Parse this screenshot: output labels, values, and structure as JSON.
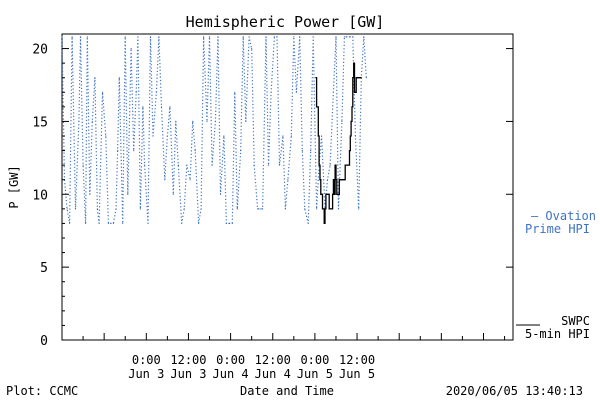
{
  "chart_data": {
    "type": "line",
    "title": "Hemispheric Power [GW]",
    "xlabel": "Date and Time",
    "ylabel": "P [GW]",
    "ylim": [
      0,
      21
    ],
    "xlim": [
      0,
      5.35
    ],
    "yticks": [
      0,
      5,
      10,
      15,
      20
    ],
    "xticks": [
      {
        "x": 1.0,
        "top": "0:00",
        "bottom": "Jun 3"
      },
      {
        "x": 1.5,
        "top": "12:00",
        "bottom": "Jun 3"
      },
      {
        "x": 2.0,
        "top": "0:00",
        "bottom": "Jun 4"
      },
      {
        "x": 2.5,
        "top": "12:00",
        "bottom": "Jun 4"
      },
      {
        "x": 3.0,
        "top": "0:00",
        "bottom": "Jun 5"
      },
      {
        "x": 3.5,
        "top": "12:00",
        "bottom": "Jun 5"
      }
    ],
    "grid": false,
    "series": [
      {
        "name_lines": [
          "— Ovation",
          "Prime HPI"
        ],
        "color": "#3f73c2",
        "style": "dotted",
        "x": [
          0.0,
          0.03,
          0.06,
          0.09,
          0.12,
          0.16,
          0.2,
          0.22,
          0.25,
          0.28,
          0.3,
          0.33,
          0.36,
          0.39,
          0.42,
          0.44,
          0.48,
          0.52,
          0.55,
          0.58,
          0.61,
          0.64,
          0.66,
          0.68,
          0.72,
          0.75,
          0.78,
          0.82,
          0.85,
          0.88,
          0.9,
          0.93,
          0.96,
          0.98,
          1.02,
          1.05,
          1.08,
          1.12,
          1.15,
          1.18,
          1.22,
          1.25,
          1.28,
          1.32,
          1.35,
          1.38,
          1.42,
          1.45,
          1.48,
          1.52,
          1.55,
          1.58,
          1.62,
          1.65,
          1.68,
          1.72,
          1.75,
          1.78,
          1.82,
          1.85,
          1.88,
          1.92,
          1.95,
          1.98,
          2.02,
          2.05,
          2.08,
          2.12,
          2.15,
          2.18,
          2.22,
          2.25,
          2.28,
          2.32,
          2.35,
          2.38,
          2.42,
          2.45,
          2.48,
          2.52,
          2.55,
          2.58,
          2.62,
          2.65,
          2.68,
          2.72,
          2.75,
          2.78,
          2.82,
          2.85,
          2.88,
          2.92,
          2.95,
          2.98,
          3.02,
          3.05,
          3.08,
          3.12,
          3.15,
          3.18,
          3.22,
          3.25,
          3.28,
          3.32,
          3.35,
          3.38,
          3.42,
          3.45,
          3.48,
          3.52,
          3.55,
          3.58,
          3.61
        ],
        "values": [
          20.8,
          11,
          9,
          8,
          20.8,
          9,
          15,
          20.8,
          12,
          8,
          20.8,
          10,
          15,
          18,
          9,
          8,
          17,
          14,
          8,
          8,
          8,
          9,
          13,
          18,
          8,
          20.8,
          10,
          20,
          13,
          17,
          20.8,
          9,
          16,
          12,
          8,
          20.8,
          14,
          17,
          20.8,
          16,
          11,
          14,
          16,
          10,
          15,
          12,
          8,
          9,
          12,
          11,
          15,
          13,
          8,
          9,
          20.8,
          15,
          20.8,
          12,
          15,
          20.8,
          10,
          14,
          8,
          8,
          8,
          17,
          9,
          13,
          20.8,
          15,
          20.8,
          20,
          12,
          9,
          9,
          9,
          20.8,
          12,
          17,
          20.8,
          20.8,
          12,
          14,
          9,
          11,
          14,
          20.8,
          17,
          20.8,
          13,
          9,
          8,
          13,
          20.8,
          9,
          12,
          14,
          9,
          11,
          12,
          17,
          20.8,
          9,
          15,
          20.8,
          20.8,
          20.8,
          20.8,
          14,
          9,
          18,
          20.8,
          18
        ]
      },
      {
        "name_lines": [
          "SWPC",
          "5-min HPI"
        ],
        "color": "#000000",
        "style": "solid",
        "x": [
          3.01,
          3.02,
          3.04,
          3.05,
          3.06,
          3.07,
          3.08,
          3.09,
          3.1,
          3.11,
          3.12,
          3.13,
          3.14,
          3.15,
          3.16,
          3.17,
          3.18,
          3.19,
          3.2,
          3.21,
          3.22,
          3.23,
          3.24,
          3.25,
          3.26,
          3.27,
          3.28,
          3.29,
          3.3,
          3.31,
          3.32,
          3.33,
          3.34,
          3.35,
          3.36,
          3.37,
          3.38,
          3.39,
          3.4,
          3.41,
          3.42,
          3.43,
          3.44,
          3.45,
          3.46,
          3.47,
          3.48,
          3.49,
          3.5,
          3.51,
          3.52,
          3.53,
          3.54,
          3.55
        ],
        "values": [
          18,
          16,
          14,
          12,
          11,
          10,
          10,
          9,
          9,
          8,
          9,
          10,
          10,
          10,
          10,
          9,
          9,
          9,
          9,
          10,
          11,
          10,
          12,
          11,
          10,
          10,
          10,
          11,
          11,
          11,
          11,
          11,
          11,
          11,
          12,
          12,
          12,
          12,
          12,
          13,
          14,
          15,
          16,
          18,
          19,
          17,
          17,
          18,
          18,
          18,
          18,
          18,
          18,
          18
        ]
      }
    ],
    "footer": {
      "left": "Plot: CCMC",
      "center": "Date and Time",
      "right": "2020/06/05 13:40:13"
    }
  }
}
